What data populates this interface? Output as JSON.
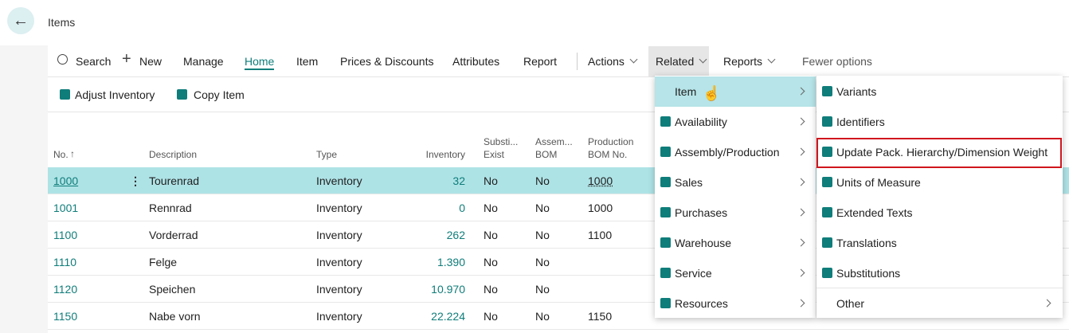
{
  "header": {
    "title": "Items"
  },
  "action_bar": {
    "commands": [
      "Search",
      "New",
      "Manage",
      "Home",
      "Item",
      "Prices & Discounts",
      "Attributes",
      "Report"
    ],
    "menus": [
      "Actions",
      "Related",
      "Reports"
    ],
    "toggle": "Fewer options"
  },
  "sub_actions": [
    "Adjust Inventory",
    "Copy Item"
  ],
  "table": {
    "columns": [
      [
        "No."
      ],
      [
        "Description"
      ],
      [
        "Type"
      ],
      [
        "Inventory"
      ],
      [
        "Substi...",
        "Exist"
      ],
      [
        "Assem...",
        "BOM"
      ],
      [
        "Production",
        "BOM No."
      ]
    ],
    "rows": [
      [
        "1000",
        "Tourenrad",
        "Inventory",
        "32",
        "No",
        "No",
        "1000"
      ],
      [
        "1001",
        "Rennrad",
        "Inventory",
        "0",
        "No",
        "No",
        "1000"
      ],
      [
        "1100",
        "Vorderrad",
        "Inventory",
        "262",
        "No",
        "No",
        "1100"
      ],
      [
        "1110",
        "Felge",
        "Inventory",
        "1.390",
        "No",
        "No",
        ""
      ],
      [
        "1120",
        "Speichen",
        "Inventory",
        "10.970",
        "No",
        "No",
        ""
      ],
      [
        "1150",
        "Nabe vorn",
        "Inventory",
        "22.224",
        "No",
        "No",
        "1150"
      ]
    ]
  },
  "related_menu": {
    "items": [
      "Item",
      "Availability",
      "Assembly/Production",
      "Sales",
      "Purchases",
      "Warehouse",
      "Service",
      "Resources"
    ]
  },
  "item_submenu": {
    "items": [
      "Variants",
      "Identifiers",
      "Update Pack. Hierarchy/Dimension Weight",
      "Units of Measure",
      "Extended Texts",
      "Translations",
      "Substitutions"
    ],
    "more": "Other"
  }
}
